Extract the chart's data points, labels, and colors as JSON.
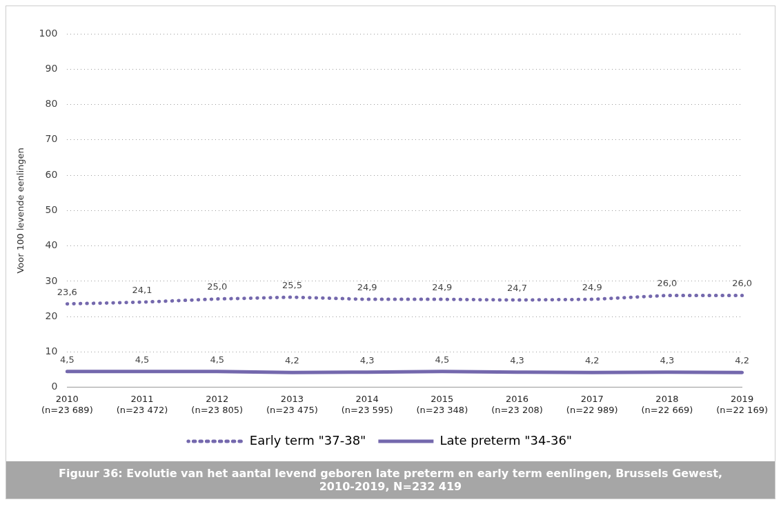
{
  "chart_data": {
    "type": "line",
    "title": "Figuur 36: Evolutie van het aantal levend geboren late preterm en early term eenlingen, Brussels Gewest, 2010-2019, N=232 419",
    "ylabel": "Voor 100 levende eenlingen",
    "categories": [
      "2010\n(n=23 689)",
      "2011\n(n=23 472)",
      "2012\n(n=23 805)",
      "2013\n(n=23 475)",
      "2014\n(n=23 595)",
      "2015\n(n=23 348)",
      "2016\n(n=23 208)",
      "2017\n(n=22 989)",
      "2018\n(n=22 669)",
      "2019\n(n=22 169)"
    ],
    "series": [
      {
        "name": "Early term \"37-38\"",
        "color": "#7468ad",
        "line_style": "dotted",
        "values": [
          23.6,
          24.1,
          25.0,
          25.5,
          24.9,
          24.9,
          24.7,
          24.9,
          26.0,
          26.0
        ],
        "value_labels": [
          "23,6",
          "24,1",
          "25,0",
          "25,5",
          "24,9",
          "24,9",
          "24,7",
          "24,9",
          "26,0",
          "26,0"
        ]
      },
      {
        "name": "Late preterm \"34-36\"",
        "color": "#7468ad",
        "line_style": "solid",
        "values": [
          4.5,
          4.5,
          4.5,
          4.2,
          4.3,
          4.5,
          4.3,
          4.2,
          4.3,
          4.2
        ],
        "value_labels": [
          "4,5",
          "4,5",
          "4,5",
          "4,2",
          "4,3",
          "4,5",
          "4,3",
          "4,2",
          "4,3",
          "4,2"
        ]
      }
    ],
    "ylim": [
      0,
      100
    ],
    "yticks": [
      0,
      10,
      20,
      30,
      40,
      50,
      60,
      70,
      80,
      90,
      100
    ],
    "grid": "y",
    "legend": "bottom",
    "marker": "none"
  }
}
